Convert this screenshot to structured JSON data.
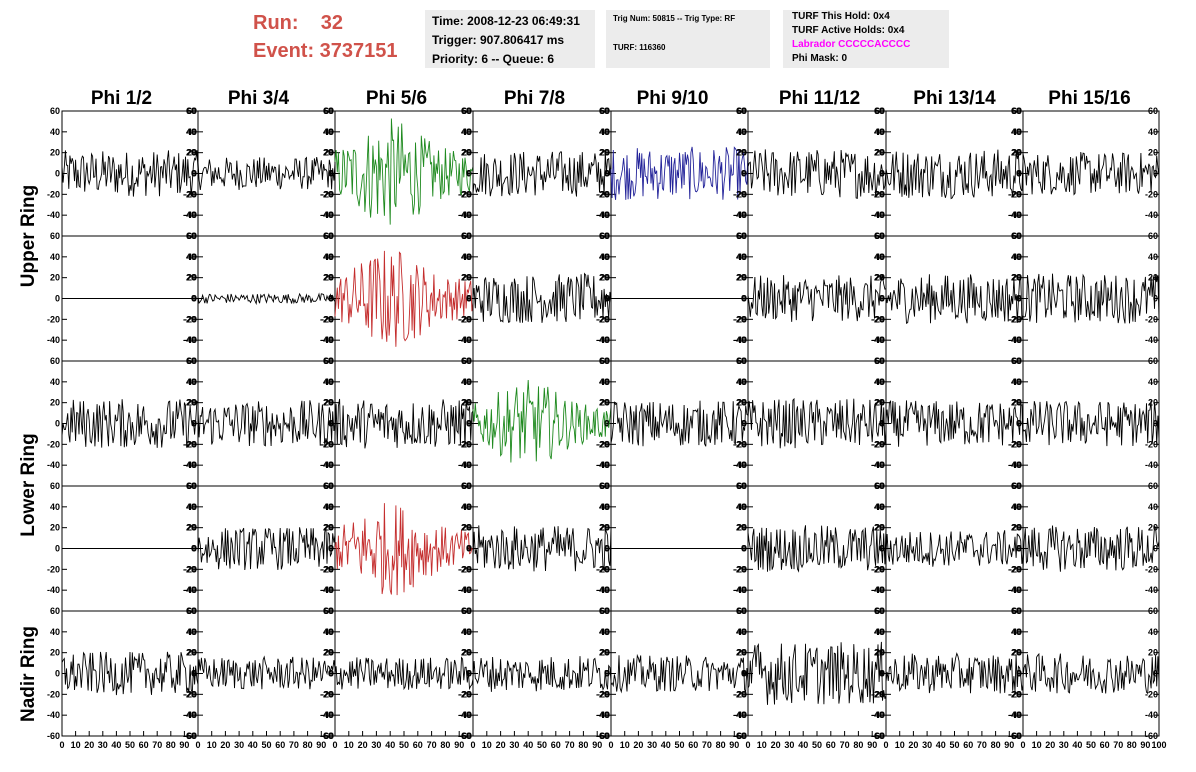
{
  "header": {
    "run_label": "Run:    32",
    "event_label": "Event: 3737151",
    "time_box": {
      "time": "Time: 2008-12-23 06:49:31",
      "trigger": "Trigger: 907.806417 ms",
      "priority": "Priority: 6 -- Queue: 6"
    },
    "trig_box": {
      "trig": "Trig Num: 50815 -- Trig Type: RF",
      "turf": "TURF: 116360"
    },
    "turf_box": {
      "this_hold": "TURF This Hold: 0x4",
      "active_holds": "TURF Active Holds: 0x4",
      "labrador": "Labrador CCCCCACCCC",
      "phi_mask": "Phi Mask: 0"
    },
    "colors": {
      "run": "#d0524a",
      "labrador": "#ff00ff",
      "box": "#ececec"
    }
  },
  "columns": [
    "Phi 1/2",
    "Phi 3/4",
    "Phi 5/6",
    "Phi 7/8",
    "Phi 9/10",
    "Phi 11/12",
    "Phi 13/14",
    "Phi 15/16"
  ],
  "rows": [
    {
      "label": "Upper Ring",
      "panels": 2
    },
    {
      "label": "Lower Ring",
      "panels": 2
    },
    {
      "label": "Nadir Ring",
      "panels": 1
    }
  ],
  "chart_data": {
    "type": "line",
    "xlim": [
      0,
      100
    ],
    "ylim": [
      -60,
      60
    ],
    "y_ticks": [
      -60,
      -40,
      -20,
      0,
      20,
      40,
      60
    ],
    "y_tick_labels": [
      "-60",
      "-40",
      "-20",
      "0",
      "20",
      "40",
      "60"
    ],
    "x_tick_labels": [
      "0",
      "10",
      "20",
      "30",
      "40",
      "50",
      "60",
      "70",
      "80",
      "90",
      "100"
    ],
    "grid": false,
    "panels_description": "5 rows x 8 columns of waveform panels; flat panels are dead channels",
    "series_colors": {
      "k": "#000000",
      "g": "#1f8a1f",
      "r": "#c42d2d",
      "b": "#24249a"
    },
    "panels": [
      [
        {
          "color": "k",
          "amp": 14,
          "shape": "noise"
        },
        {
          "color": "k",
          "amp": 10,
          "shape": "noise"
        },
        {
          "color": "g",
          "amp": 28,
          "shape": "burst"
        },
        {
          "color": "k",
          "amp": 14,
          "shape": "noise"
        },
        {
          "color": "b",
          "amp": 16,
          "shape": "noise"
        },
        {
          "color": "k",
          "amp": 15,
          "shape": "noise"
        },
        {
          "color": "k",
          "amp": 15,
          "shape": "noise"
        },
        {
          "color": "k",
          "amp": 13,
          "shape": "noise"
        }
      ],
      [
        {
          "color": "k",
          "amp": 0,
          "shape": "flat"
        },
        {
          "color": "k",
          "amp": 3,
          "shape": "noise"
        },
        {
          "color": "r",
          "amp": 26,
          "shape": "burst"
        },
        {
          "color": "k",
          "amp": 15,
          "shape": "noise"
        },
        {
          "color": "k",
          "amp": 0,
          "shape": "flat"
        },
        {
          "color": "k",
          "amp": 14,
          "shape": "noise"
        },
        {
          "color": "k",
          "amp": 15,
          "shape": "noise"
        },
        {
          "color": "k",
          "amp": 15,
          "shape": "noise"
        }
      ],
      [
        {
          "color": "k",
          "amp": 15,
          "shape": "noise"
        },
        {
          "color": "k",
          "amp": 14,
          "shape": "noise"
        },
        {
          "color": "k",
          "amp": 15,
          "shape": "noise"
        },
        {
          "color": "g",
          "amp": 22,
          "shape": "burst"
        },
        {
          "color": "k",
          "amp": 14,
          "shape": "noise"
        },
        {
          "color": "k",
          "amp": 15,
          "shape": "noise"
        },
        {
          "color": "k",
          "amp": 14,
          "shape": "noise"
        },
        {
          "color": "k",
          "amp": 14,
          "shape": "noise"
        }
      ],
      [
        {
          "color": "k",
          "amp": 0,
          "shape": "flat"
        },
        {
          "color": "k",
          "amp": 13,
          "shape": "noise"
        },
        {
          "color": "r",
          "amp": 24,
          "shape": "burst"
        },
        {
          "color": "k",
          "amp": 14,
          "shape": "noise"
        },
        {
          "color": "k",
          "amp": 0,
          "shape": "flat"
        },
        {
          "color": "k",
          "amp": 14,
          "shape": "noise"
        },
        {
          "color": "k",
          "amp": 11,
          "shape": "noise"
        },
        {
          "color": "k",
          "amp": 14,
          "shape": "noise"
        }
      ],
      [
        {
          "color": "k",
          "amp": 13,
          "shape": "noise"
        },
        {
          "color": "k",
          "amp": 10,
          "shape": "noise"
        },
        {
          "color": "k",
          "amp": 10,
          "shape": "noise"
        },
        {
          "color": "k",
          "amp": 11,
          "shape": "noise"
        },
        {
          "color": "k",
          "amp": 11,
          "shape": "noise"
        },
        {
          "color": "k",
          "amp": 19,
          "shape": "noise"
        },
        {
          "color": "k",
          "amp": 12,
          "shape": "noise"
        },
        {
          "color": "k",
          "amp": 12,
          "shape": "noise"
        }
      ]
    ]
  }
}
